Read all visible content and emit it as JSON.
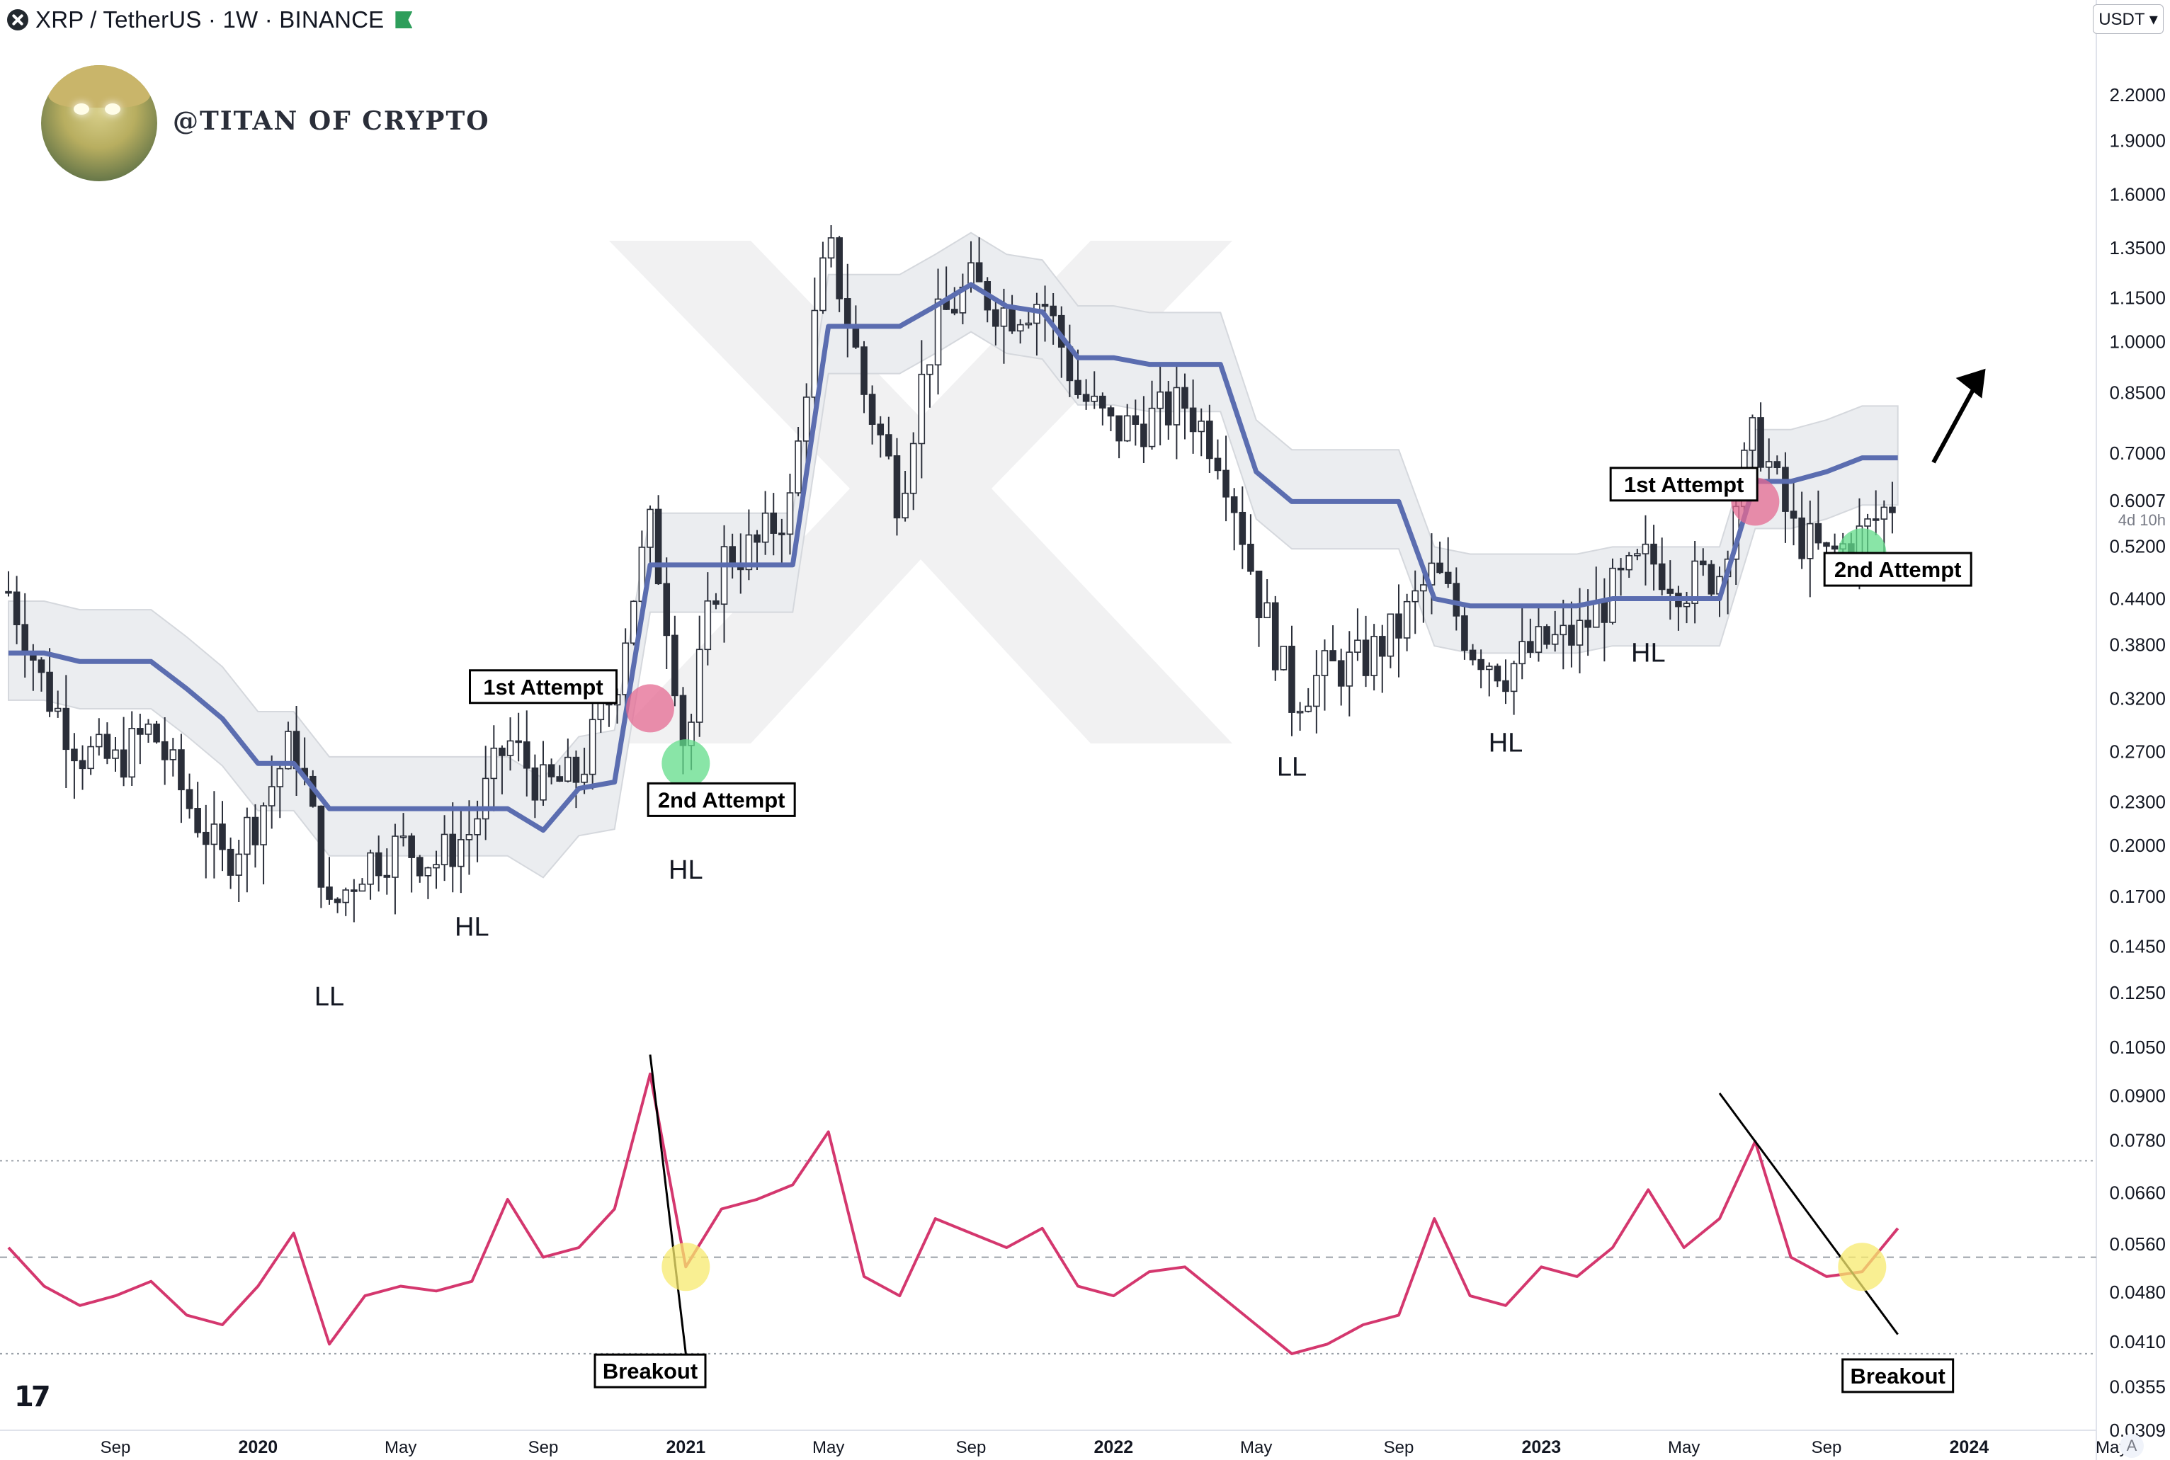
{
  "header": {
    "symbol_text": "XRP / TetherUS · 1W · BINANCE",
    "currency_selector": "USDT",
    "brand": "@TITAN OF CRYPTO",
    "tv_logo": "17",
    "auto_button": "A",
    "countdown": "4d 10h"
  },
  "colors": {
    "candle": "#2a2e39",
    "baseline": "#5b6db0",
    "rsi": "#d4376e",
    "cloud": "#ebedf0",
    "red_marker": "#e46a92",
    "green_marker": "#62dc8a",
    "yellow_marker": "#f7ea6e"
  },
  "chart_data": [
    {
      "type": "candlestick",
      "title": "XRP / TetherUS · 1W · BINANCE",
      "y_scale": "log",
      "ylim": [
        0.0309,
        2.6
      ],
      "y_ticks": [
        "2.2000",
        "1.9000",
        "1.6000",
        "1.3500",
        "1.1500",
        "1.0000",
        "0.8500",
        "0.7000",
        "0.5200",
        "0.4400",
        "0.3800",
        "0.3200",
        "0.2700",
        "0.2300",
        "0.2000",
        "0.1700",
        "0.1450",
        "0.1250",
        "0.1050",
        "0.0900",
        "0.0780",
        "0.0660",
        "0.0560",
        "0.0480",
        "0.0410",
        "0.0355",
        "0.0309"
      ],
      "y_tick_values": [
        2.2,
        1.9,
        1.6,
        1.35,
        1.15,
        1.0,
        0.85,
        0.7,
        0.52,
        0.44,
        0.38,
        0.32,
        0.27,
        0.23,
        0.2,
        0.17,
        0.145,
        0.125,
        0.105,
        0.09,
        0.078,
        0.066,
        0.056,
        0.048,
        0.041,
        0.0355,
        0.0309
      ],
      "last_price": "0.6007",
      "x_ticks": [
        {
          "label": "Sep",
          "date": "2019-09",
          "bold": false
        },
        {
          "label": "2020",
          "date": "2020-01",
          "bold": true
        },
        {
          "label": "May",
          "date": "2020-05",
          "bold": false
        },
        {
          "label": "Sep",
          "date": "2020-09",
          "bold": false
        },
        {
          "label": "2021",
          "date": "2021-01",
          "bold": true
        },
        {
          "label": "May",
          "date": "2021-05",
          "bold": false
        },
        {
          "label": "Sep",
          "date": "2021-09",
          "bold": false
        },
        {
          "label": "2022",
          "date": "2022-01",
          "bold": true
        },
        {
          "label": "May",
          "date": "2022-05",
          "bold": false
        },
        {
          "label": "Sep",
          "date": "2022-09",
          "bold": false
        },
        {
          "label": "2023",
          "date": "2023-01",
          "bold": true
        },
        {
          "label": "May",
          "date": "2023-05",
          "bold": false
        },
        {
          "label": "Sep",
          "date": "2023-09",
          "bold": false
        },
        {
          "label": "2024",
          "date": "2024-01",
          "bold": true
        },
        {
          "label": "May",
          "date": "2024-05",
          "bold": false
        }
      ],
      "price_path": [
        [
          "2019-06",
          0.45
        ],
        [
          "2019-07",
          0.33
        ],
        [
          "2019-08",
          0.27
        ],
        [
          "2019-09",
          0.26
        ],
        [
          "2019-10",
          0.29
        ],
        [
          "2019-11",
          0.23
        ],
        [
          "2019-12",
          0.19
        ],
        [
          "2020-01",
          0.22
        ],
        [
          "2020-02",
          0.28
        ],
        [
          "2020-03",
          0.16
        ],
        [
          "2020-04",
          0.19
        ],
        [
          "2020-05",
          0.2
        ],
        [
          "2020-06",
          0.19
        ],
        [
          "2020-07",
          0.21
        ],
        [
          "2020-08",
          0.28
        ],
        [
          "2020-09",
          0.24
        ],
        [
          "2020-10",
          0.25
        ],
        [
          "2020-11",
          0.33
        ],
        [
          "2020-12",
          0.55
        ],
        [
          "2021-01",
          0.26
        ],
        [
          "2021-02",
          0.5
        ],
        [
          "2021-03",
          0.52
        ],
        [
          "2021-04",
          0.6
        ],
        [
          "2021-05",
          1.35
        ],
        [
          "2021-06",
          0.85
        ],
        [
          "2021-07",
          0.6
        ],
        [
          "2021-08",
          1.05
        ],
        [
          "2021-09",
          1.2
        ],
        [
          "2021-10",
          1.1
        ],
        [
          "2021-11",
          1.15
        ],
        [
          "2021-12",
          0.85
        ],
        [
          "2022-01",
          0.75
        ],
        [
          "2022-02",
          0.78
        ],
        [
          "2022-03",
          0.82
        ],
        [
          "2022-04",
          0.7
        ],
        [
          "2022-05",
          0.45
        ],
        [
          "2022-06",
          0.32
        ],
        [
          "2022-07",
          0.35
        ],
        [
          "2022-08",
          0.36
        ],
        [
          "2022-09",
          0.4
        ],
        [
          "2022-10",
          0.48
        ],
        [
          "2022-11",
          0.38
        ],
        [
          "2022-12",
          0.35
        ],
        [
          "2023-01",
          0.38
        ],
        [
          "2023-02",
          0.39
        ],
        [
          "2023-03",
          0.45
        ],
        [
          "2023-04",
          0.5
        ],
        [
          "2023-05",
          0.46
        ],
        [
          "2023-06",
          0.48
        ],
        [
          "2023-07",
          0.75
        ],
        [
          "2023-08",
          0.55
        ],
        [
          "2023-09",
          0.5
        ],
        [
          "2023-10",
          0.54
        ],
        [
          "2023-11",
          0.61
        ]
      ],
      "baseline_path": [
        [
          "2019-06",
          0.37
        ],
        [
          "2019-07",
          0.37
        ],
        [
          "2019-08",
          0.36
        ],
        [
          "2019-09",
          0.36
        ],
        [
          "2019-10",
          0.36
        ],
        [
          "2019-11",
          0.33
        ],
        [
          "2019-12",
          0.3
        ],
        [
          "2020-01",
          0.26
        ],
        [
          "2020-02",
          0.26
        ],
        [
          "2020-03",
          0.225
        ],
        [
          "2020-04",
          0.225
        ],
        [
          "2020-05",
          0.225
        ],
        [
          "2020-06",
          0.225
        ],
        [
          "2020-07",
          0.225
        ],
        [
          "2020-08",
          0.225
        ],
        [
          "2020-09",
          0.21
        ],
        [
          "2020-10",
          0.24
        ],
        [
          "2020-11",
          0.245
        ],
        [
          "2020-12",
          0.49
        ],
        [
          "2021-01",
          0.49
        ],
        [
          "2021-02",
          0.49
        ],
        [
          "2021-03",
          0.49
        ],
        [
          "2021-04",
          0.49
        ],
        [
          "2021-05",
          1.05
        ],
        [
          "2021-06",
          1.05
        ],
        [
          "2021-07",
          1.05
        ],
        [
          "2021-08",
          1.12
        ],
        [
          "2021-09",
          1.2
        ],
        [
          "2021-10",
          1.12
        ],
        [
          "2021-11",
          1.1
        ],
        [
          "2021-12",
          0.95
        ],
        [
          "2022-01",
          0.95
        ],
        [
          "2022-02",
          0.93
        ],
        [
          "2022-03",
          0.93
        ],
        [
          "2022-04",
          0.93
        ],
        [
          "2022-05",
          0.66
        ],
        [
          "2022-06",
          0.6
        ],
        [
          "2022-07",
          0.6
        ],
        [
          "2022-08",
          0.6
        ],
        [
          "2022-09",
          0.6
        ],
        [
          "2022-10",
          0.44
        ],
        [
          "2022-11",
          0.43
        ],
        [
          "2022-12",
          0.43
        ],
        [
          "2023-01",
          0.43
        ],
        [
          "2023-02",
          0.43
        ],
        [
          "2023-03",
          0.44
        ],
        [
          "2023-04",
          0.44
        ],
        [
          "2023-05",
          0.44
        ],
        [
          "2023-06",
          0.44
        ],
        [
          "2023-07",
          0.64
        ],
        [
          "2023-08",
          0.64
        ],
        [
          "2023-09",
          0.66
        ],
        [
          "2023-10",
          0.69
        ],
        [
          "2023-11",
          0.69
        ]
      ],
      "markers": [
        {
          "kind": "red",
          "date": "2020-12",
          "value": 0.31
        },
        {
          "kind": "green",
          "date": "2021-01",
          "value": 0.26
        },
        {
          "kind": "red",
          "date": "2023-07",
          "value": 0.6
        },
        {
          "kind": "green",
          "date": "2023-10",
          "value": 0.51
        }
      ],
      "annotations": [
        {
          "text": "LL",
          "date": "2020-03",
          "value": 0.12,
          "boxed": false
        },
        {
          "text": "HL",
          "date": "2020-07",
          "value": 0.15,
          "boxed": false
        },
        {
          "text": "1st Attempt",
          "date": "2020-09",
          "value": 0.33,
          "boxed": true
        },
        {
          "text": "2nd Attempt",
          "date": "2021-02",
          "value": 0.23,
          "boxed": true
        },
        {
          "text": "HL",
          "date": "2021-01",
          "value": 0.18,
          "boxed": false
        },
        {
          "text": "LL",
          "date": "2022-06",
          "value": 0.25,
          "boxed": false
        },
        {
          "text": "HL",
          "date": "2022-12",
          "value": 0.27,
          "boxed": false
        },
        {
          "text": "HL",
          "date": "2023-04",
          "value": 0.36,
          "boxed": false
        },
        {
          "text": "1st Attempt",
          "date": "2023-05",
          "value": 0.63,
          "boxed": true
        },
        {
          "text": "2nd Attempt",
          "date": "2023-11",
          "value": 0.48,
          "boxed": true
        }
      ]
    },
    {
      "type": "line",
      "series": [
        {
          "values": [
            [
              "2019-06",
              52
            ],
            [
              "2019-07",
              44
            ],
            [
              "2019-08",
              40
            ],
            [
              "2019-09",
              42
            ],
            [
              "2019-10",
              45
            ],
            [
              "2019-11",
              38
            ],
            [
              "2019-12",
              36
            ],
            [
              "2020-01",
              44
            ],
            [
              "2020-02",
              55
            ],
            [
              "2020-03",
              32
            ],
            [
              "2020-04",
              42
            ],
            [
              "2020-05",
              44
            ],
            [
              "2020-06",
              43
            ],
            [
              "2020-07",
              45
            ],
            [
              "2020-08",
              62
            ],
            [
              "2020-09",
              50
            ],
            [
              "2020-10",
              52
            ],
            [
              "2020-11",
              60
            ],
            [
              "2020-12",
              88
            ],
            [
              "2021-01",
              48
            ],
            [
              "2021-02",
              60
            ],
            [
              "2021-03",
              62
            ],
            [
              "2021-04",
              65
            ],
            [
              "2021-05",
              76
            ],
            [
              "2021-06",
              46
            ],
            [
              "2021-07",
              42
            ],
            [
              "2021-08",
              58
            ],
            [
              "2021-09",
              55
            ],
            [
              "2021-10",
              52
            ],
            [
              "2021-11",
              56
            ],
            [
              "2021-12",
              44
            ],
            [
              "2022-01",
              42
            ],
            [
              "2022-02",
              47
            ],
            [
              "2022-03",
              48
            ],
            [
              "2022-04",
              42
            ],
            [
              "2022-05",
              36
            ],
            [
              "2022-06",
              30
            ],
            [
              "2022-07",
              32
            ],
            [
              "2022-08",
              36
            ],
            [
              "2022-09",
              38
            ],
            [
              "2022-10",
              58
            ],
            [
              "2022-11",
              42
            ],
            [
              "2022-12",
              40
            ],
            [
              "2023-01",
              48
            ],
            [
              "2023-02",
              46
            ],
            [
              "2023-03",
              52
            ],
            [
              "2023-04",
              64
            ],
            [
              "2023-05",
              52
            ],
            [
              "2023-06",
              58
            ],
            [
              "2023-07",
              74
            ],
            [
              "2023-08",
              50
            ],
            [
              "2023-09",
              46
            ],
            [
              "2023-10",
              47
            ],
            [
              "2023-11",
              56
            ]
          ]
        }
      ],
      "ylim": [
        20,
        100
      ],
      "bands": [
        70,
        50,
        30
      ],
      "trendlines": [
        {
          "from": [
            "2020-12",
            92
          ],
          "to": [
            "2021-01",
            30
          ]
        },
        {
          "from": [
            "2023-06",
            84
          ],
          "to": [
            "2023-11",
            34
          ]
        }
      ],
      "markers": [
        {
          "kind": "yellow",
          "date": "2021-01",
          "value": 48
        },
        {
          "kind": "yellow",
          "date": "2023-10",
          "value": 48
        }
      ],
      "annotations": [
        {
          "text": "Breakout",
          "date": "2020-12",
          "value": 26
        },
        {
          "text": "Breakout",
          "date": "2023-11",
          "value": 25
        }
      ]
    }
  ]
}
